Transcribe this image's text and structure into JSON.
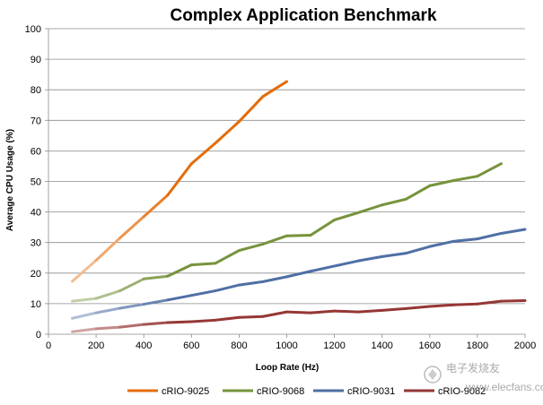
{
  "chart_data": {
    "type": "line",
    "title": "Complex Application Benchmark",
    "xlabel": "Loop Rate (Hz)",
    "ylabel": "Average CPU Usage (%)",
    "xlim": [
      0,
      2000
    ],
    "ylim": [
      0,
      100
    ],
    "xticks": [
      0,
      200,
      400,
      600,
      800,
      1000,
      1200,
      1400,
      1600,
      1800,
      2000
    ],
    "yticks": [
      0,
      10,
      20,
      30,
      40,
      50,
      60,
      70,
      80,
      90,
      100
    ],
    "grid": "horizontal",
    "legend_position": "bottom",
    "series": [
      {
        "name": "cRIO-9025",
        "color": "#E36C0A",
        "x": [
          100,
          200,
          300,
          400,
          500,
          600,
          700,
          800,
          900,
          1000
        ],
        "y": [
          17.3,
          24.2,
          31.5,
          38.5,
          45.5,
          55.8,
          62.5,
          69.6,
          77.8,
          82.7
        ]
      },
      {
        "name": "cRIO-9068",
        "color": "#77933C",
        "x": [
          100,
          200,
          300,
          400,
          500,
          600,
          700,
          800,
          900,
          1000,
          1100,
          1200,
          1300,
          1400,
          1500,
          1600,
          1700,
          1800,
          1900
        ],
        "y": [
          10.8,
          11.7,
          14.2,
          18.1,
          19.0,
          22.7,
          23.2,
          27.4,
          29.5,
          32.2,
          32.4,
          37.4,
          39.8,
          42.3,
          44.2,
          48.6,
          50.3,
          51.7,
          55.8
        ]
      },
      {
        "name": "cRIO-9031",
        "color": "#4F6FA5",
        "x": [
          100,
          200,
          300,
          400,
          500,
          600,
          700,
          800,
          900,
          1000,
          1100,
          1200,
          1300,
          1400,
          1500,
          1600,
          1700,
          1800,
          1900,
          2000
        ],
        "y": [
          5.2,
          7.0,
          8.5,
          9.8,
          11.2,
          12.7,
          14.2,
          16.1,
          17.2,
          18.8,
          20.6,
          22.3,
          24.0,
          25.4,
          26.5,
          28.7,
          30.4,
          31.2,
          33.0,
          34.3
        ]
      },
      {
        "name": "cRIO-9082",
        "color": "#953735",
        "x": [
          100,
          200,
          300,
          400,
          500,
          600,
          700,
          800,
          900,
          1000,
          1100,
          1200,
          1300,
          1400,
          1500,
          1600,
          1700,
          1800,
          1900,
          2000
        ],
        "y": [
          0.8,
          1.8,
          2.3,
          3.2,
          3.8,
          4.1,
          4.6,
          5.5,
          5.8,
          7.3,
          7.0,
          7.6,
          7.3,
          7.8,
          8.4,
          9.1,
          9.6,
          9.9,
          10.8,
          11.0
        ]
      }
    ]
  },
  "watermark": {
    "cn_text": "电子发烧友",
    "url": "www.elecfans.com"
  }
}
